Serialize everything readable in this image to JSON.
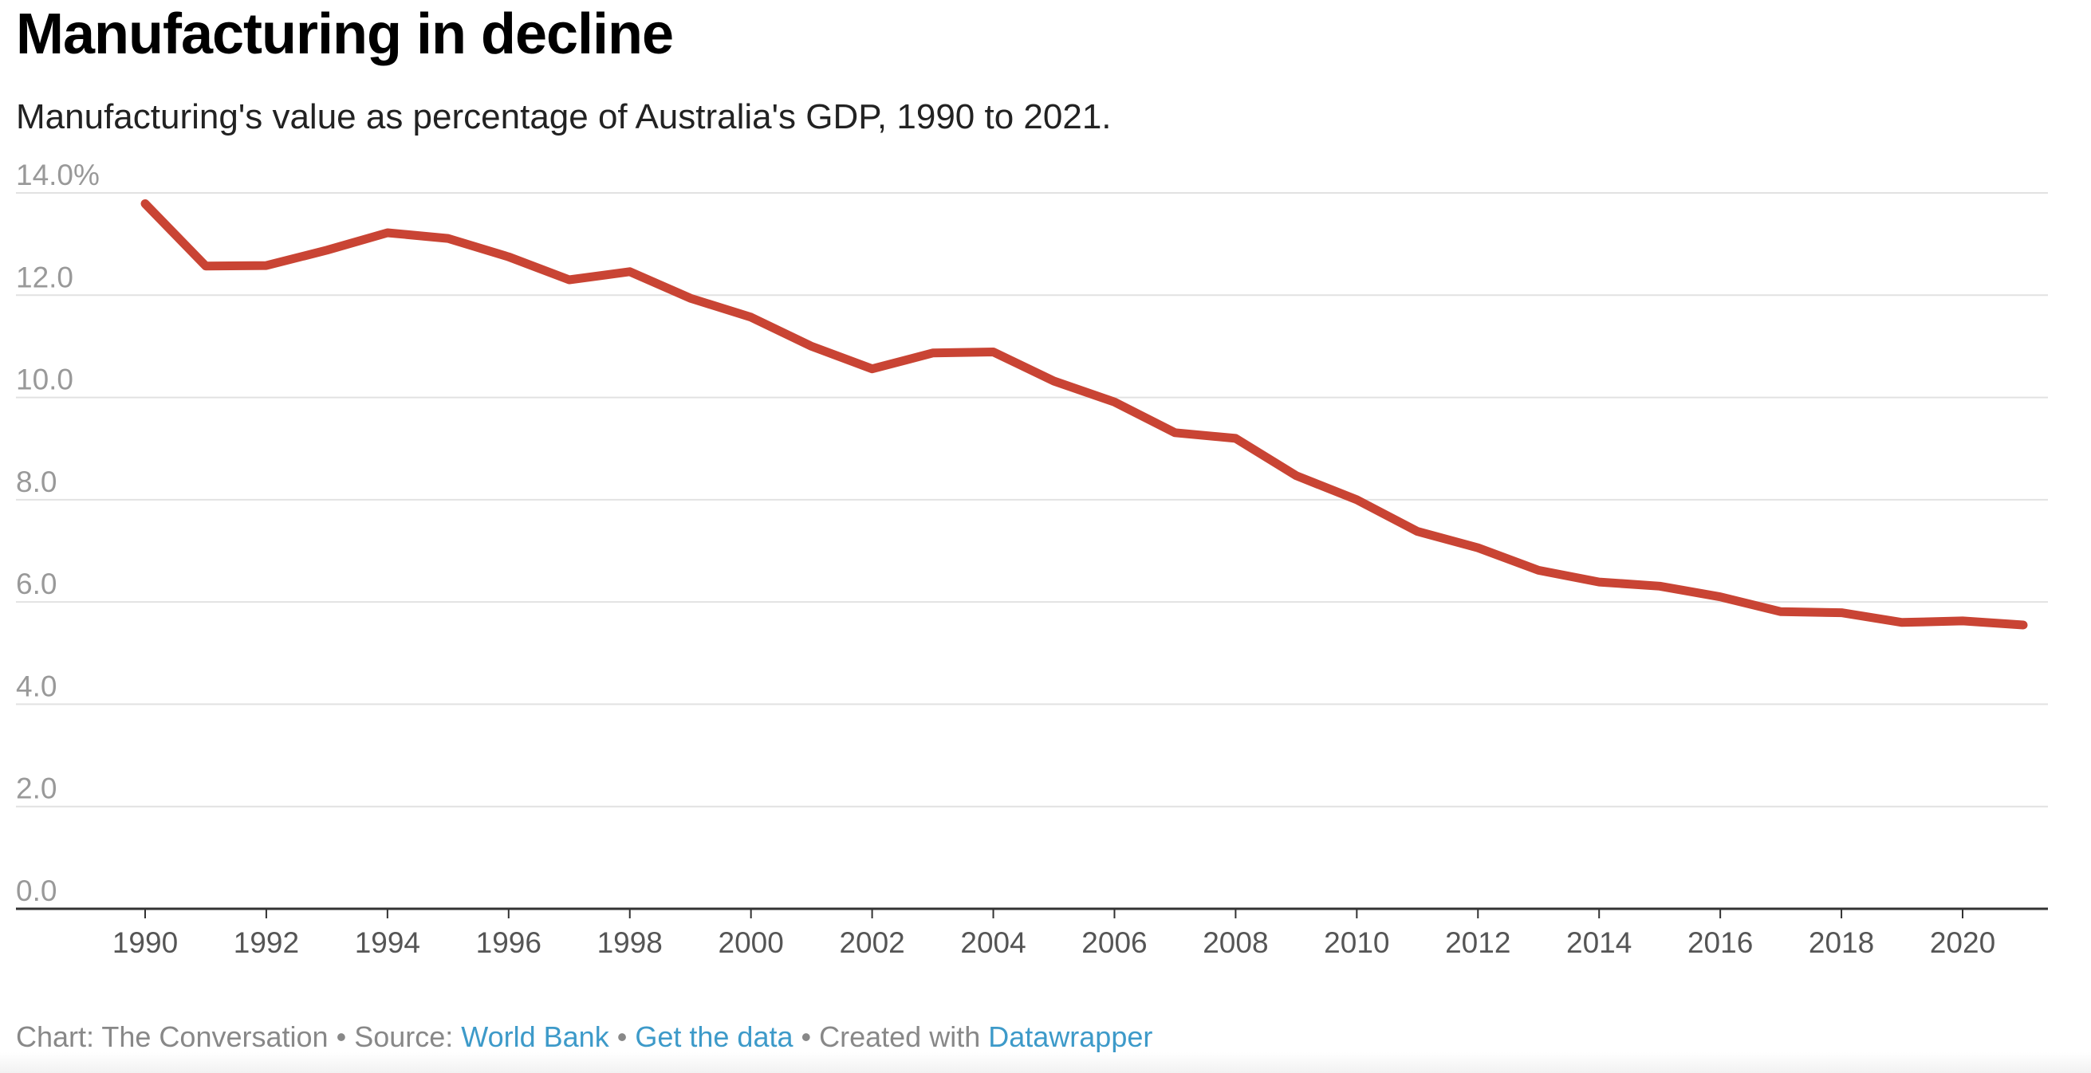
{
  "title": "Manufacturing in decline",
  "subtitle": "Manufacturing's value as percentage of Australia's GDP, 1990 to 2021.",
  "footer": {
    "chart_credit": "Chart: The Conversation",
    "source_label": "Source:",
    "source_link": "World Bank",
    "data_link": "Get the data",
    "created_label": "Created with",
    "tool_link": "Datawrapper",
    "separator": "•"
  },
  "chart_data": {
    "type": "line",
    "title": "Manufacturing in decline",
    "subtitle": "Manufacturing's value as percentage of Australia's GDP, 1990 to 2021.",
    "xlabel": "",
    "ylabel": "",
    "ylim": [
      0,
      14
    ],
    "xlim": [
      1990,
      2021
    ],
    "grid": true,
    "line_color": "#c94434",
    "y_ticks": [
      "0.0",
      "2.0",
      "4.0",
      "6.0",
      "8.0",
      "10.0",
      "12.0",
      "14.0%"
    ],
    "y_tick_values": [
      0,
      2,
      4,
      6,
      8,
      10,
      12,
      14
    ],
    "x_ticks": [
      "1990",
      "1992",
      "1994",
      "1996",
      "1998",
      "2000",
      "2002",
      "2004",
      "2006",
      "2008",
      "2010",
      "2012",
      "2014",
      "2016",
      "2018",
      "2020"
    ],
    "x": [
      1990,
      1991,
      1992,
      1993,
      1994,
      1995,
      1996,
      1997,
      1998,
      1999,
      2000,
      2001,
      2002,
      2003,
      2004,
      2005,
      2006,
      2007,
      2008,
      2009,
      2010,
      2011,
      2012,
      2013,
      2014,
      2015,
      2016,
      2017,
      2018,
      2019,
      2020,
      2021
    ],
    "values": [
      13.79,
      12.57,
      12.58,
      12.88,
      13.22,
      13.11,
      12.75,
      12.3,
      12.46,
      11.94,
      11.57,
      11.0,
      10.56,
      10.87,
      10.89,
      10.32,
      9.91,
      9.31,
      9.2,
      8.47,
      8.0,
      7.38,
      7.06,
      6.62,
      6.39,
      6.31,
      6.1,
      5.81,
      5.79,
      5.6,
      5.63,
      5.55
    ]
  }
}
